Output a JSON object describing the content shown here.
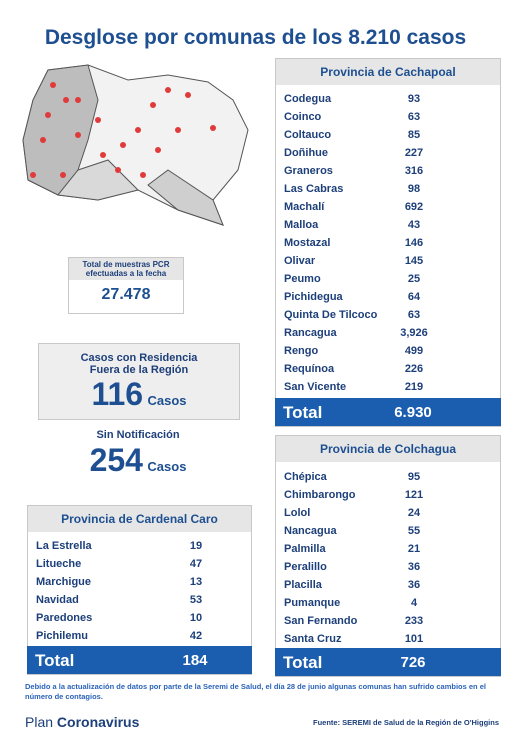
{
  "header": {
    "title": "Desglose por comunas de los 8.210 casos"
  },
  "pcr": {
    "label": "Total de muestras PCR efectuadas a la fecha",
    "value": "27.478"
  },
  "outside_region": {
    "label": "Casos con Residencia Fuera de la Región",
    "value": "116",
    "unit": "Casos"
  },
  "no_notification": {
    "label": "Sin Notificación",
    "value": "254",
    "unit": "Casos"
  },
  "tables": [
    {
      "title": "Provincia de Cachapoal",
      "rows": [
        [
          "Codegua",
          "93"
        ],
        [
          "Coinco",
          "63"
        ],
        [
          "Coltauco",
          "85"
        ],
        [
          "Doñihue",
          "227"
        ],
        [
          "Graneros",
          "316"
        ],
        [
          "Las Cabras",
          "98"
        ],
        [
          "Machalí",
          "692"
        ],
        [
          "Malloa",
          "43"
        ],
        [
          "Mostazal",
          "146"
        ],
        [
          "Olivar",
          "145"
        ],
        [
          "Peumo",
          "25"
        ],
        [
          "Pichidegua",
          "64"
        ],
        [
          "Quinta De Tilcoco",
          "63"
        ],
        [
          "Rancagua",
          "3,926"
        ],
        [
          "Rengo",
          "499"
        ],
        [
          "Requínoa",
          "226"
        ],
        [
          "San Vicente",
          "219"
        ]
      ],
      "total_label": "Total",
      "total": "6.930"
    },
    {
      "title": "Provincia de Colchagua",
      "rows": [
        [
          "Chépica",
          "95"
        ],
        [
          "Chimbarongo",
          "121"
        ],
        [
          "Lolol",
          "24"
        ],
        [
          "Nancagua",
          "55"
        ],
        [
          "Palmilla",
          "21"
        ],
        [
          "Peralillo",
          "36"
        ],
        [
          "Placilla",
          "36"
        ],
        [
          "Pumanque",
          "4"
        ],
        [
          "San Fernando",
          "233"
        ],
        [
          "Santa Cruz",
          "101"
        ]
      ],
      "total_label": "Total",
      "total": "726"
    },
    {
      "title": "Provincia de Cardenal Caro",
      "rows": [
        [
          "La Estrella",
          "19"
        ],
        [
          "Litueche",
          "47"
        ],
        [
          "Marchigue",
          "13"
        ],
        [
          "Navidad",
          "53"
        ],
        [
          "Paredones",
          "10"
        ],
        [
          "Pichilemu",
          "42"
        ]
      ],
      "total_label": "Total",
      "total": "184"
    }
  ],
  "footer": {
    "note": "Debido a la actualización de datos por parte de la Seremi de Salud, el día 28 de junio algunas comunas han sufrido cambios en el número de contagios.",
    "brand_prefix": "Plan",
    "brand": "Coronavirus",
    "source": "Fuente: SEREMI de Salud de la Región de O'Higgins"
  }
}
